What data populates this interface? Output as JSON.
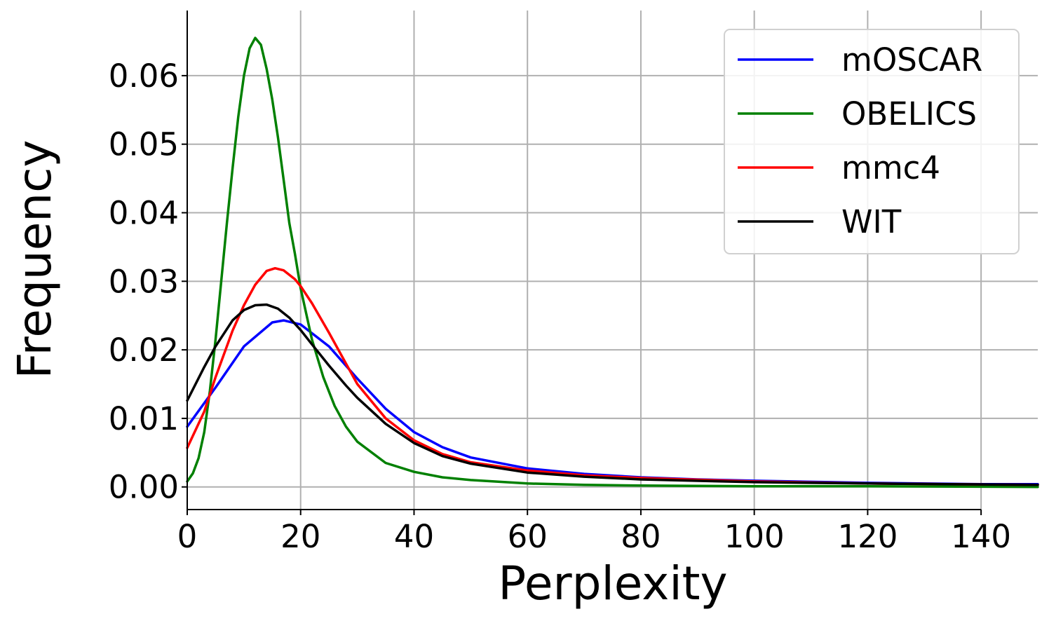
{
  "chart_data": {
    "type": "line",
    "title": "",
    "xlabel": "Perplexity",
    "ylabel": "Frequency",
    "xlim": [
      0,
      150
    ],
    "ylim": [
      -0.0033,
      0.0695
    ],
    "xticks": [
      0,
      20,
      40,
      60,
      80,
      100,
      120,
      140
    ],
    "xtick_labels": [
      "0",
      "20",
      "40",
      "60",
      "80",
      "100",
      "120",
      "140"
    ],
    "yticks": [
      0,
      0.01,
      0.02,
      0.03,
      0.04,
      0.05,
      0.06
    ],
    "ytick_labels": [
      "0.00",
      "0.01",
      "0.02",
      "0.03",
      "0.04",
      "0.05",
      "0.06"
    ],
    "grid": true,
    "legend_position": "top-right",
    "series": [
      {
        "name": "mOSCAR",
        "color": "#0000ff",
        "x": [
          0,
          5,
          10,
          15,
          17,
          20,
          25,
          30,
          35,
          40,
          45,
          50,
          60,
          70,
          80,
          90,
          100,
          120,
          140,
          150
        ],
        "y": [
          0.0088,
          0.0145,
          0.0205,
          0.024,
          0.0243,
          0.0237,
          0.0205,
          0.0158,
          0.0114,
          0.008,
          0.0058,
          0.0043,
          0.0027,
          0.0019,
          0.0014,
          0.0011,
          0.0009,
          0.0006,
          0.0004,
          0.0004
        ]
      },
      {
        "name": "OBELICS",
        "color": "#008000",
        "x": [
          0,
          1,
          2,
          3,
          4,
          5,
          6,
          7,
          8,
          9,
          10,
          11,
          12,
          13,
          14,
          15,
          16,
          17,
          18,
          19,
          20,
          22,
          24,
          26,
          28,
          30,
          35,
          40,
          45,
          50,
          60,
          70,
          80,
          100,
          120,
          150
        ],
        "y": [
          0.0008,
          0.002,
          0.0042,
          0.008,
          0.014,
          0.0215,
          0.03,
          0.0385,
          0.0465,
          0.054,
          0.06,
          0.064,
          0.0655,
          0.0645,
          0.061,
          0.0565,
          0.051,
          0.0448,
          0.0385,
          0.034,
          0.029,
          0.0215,
          0.016,
          0.0118,
          0.0088,
          0.0066,
          0.0035,
          0.0022,
          0.0014,
          0.001,
          0.0005,
          0.0003,
          0.0002,
          0.0001,
          0.0001,
          0.0
        ]
      },
      {
        "name": "mmc4",
        "color": "#ff0000",
        "x": [
          0,
          3,
          5,
          8,
          10,
          12,
          14,
          15.5,
          17,
          19,
          20,
          22,
          25,
          28,
          30,
          35,
          40,
          45,
          50,
          60,
          70,
          80,
          100,
          120,
          150
        ],
        "y": [
          0.0057,
          0.011,
          0.016,
          0.0228,
          0.0265,
          0.0295,
          0.0315,
          0.0319,
          0.0316,
          0.0303,
          0.0293,
          0.0268,
          0.0225,
          0.018,
          0.015,
          0.01,
          0.0068,
          0.0048,
          0.0036,
          0.0024,
          0.0017,
          0.0013,
          0.0008,
          0.0005,
          0.0003
        ]
      },
      {
        "name": "WIT",
        "color": "#000000",
        "x": [
          0,
          3,
          5,
          8,
          10,
          12,
          14,
          16,
          18,
          20,
          22,
          25,
          28,
          30,
          35,
          40,
          45,
          50,
          60,
          70,
          80,
          100,
          120,
          150
        ],
        "y": [
          0.0126,
          0.0175,
          0.0205,
          0.0243,
          0.0258,
          0.0265,
          0.0266,
          0.026,
          0.0247,
          0.0229,
          0.0208,
          0.0177,
          0.0148,
          0.013,
          0.0092,
          0.0064,
          0.0045,
          0.0034,
          0.0021,
          0.0015,
          0.0011,
          0.0007,
          0.0005,
          0.0003
        ]
      }
    ]
  }
}
